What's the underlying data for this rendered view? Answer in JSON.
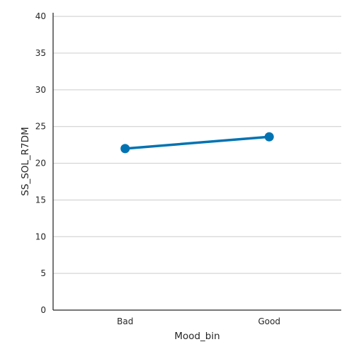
{
  "chart_data": {
    "type": "line",
    "categories": [
      "Bad",
      "Good"
    ],
    "series": [
      {
        "values": [
          22.0,
          23.6
        ],
        "color": "#0173b2"
      }
    ],
    "xlabel": "Mood_bin",
    "ylabel": "SS_SOL_R7DM",
    "ylim": [
      0,
      40.5
    ],
    "yticks": [
      0,
      5,
      10,
      15,
      20,
      25,
      30,
      35,
      40
    ],
    "grid": "horizontal",
    "grid_color": "#cccccc",
    "axis_color": "#262626"
  }
}
